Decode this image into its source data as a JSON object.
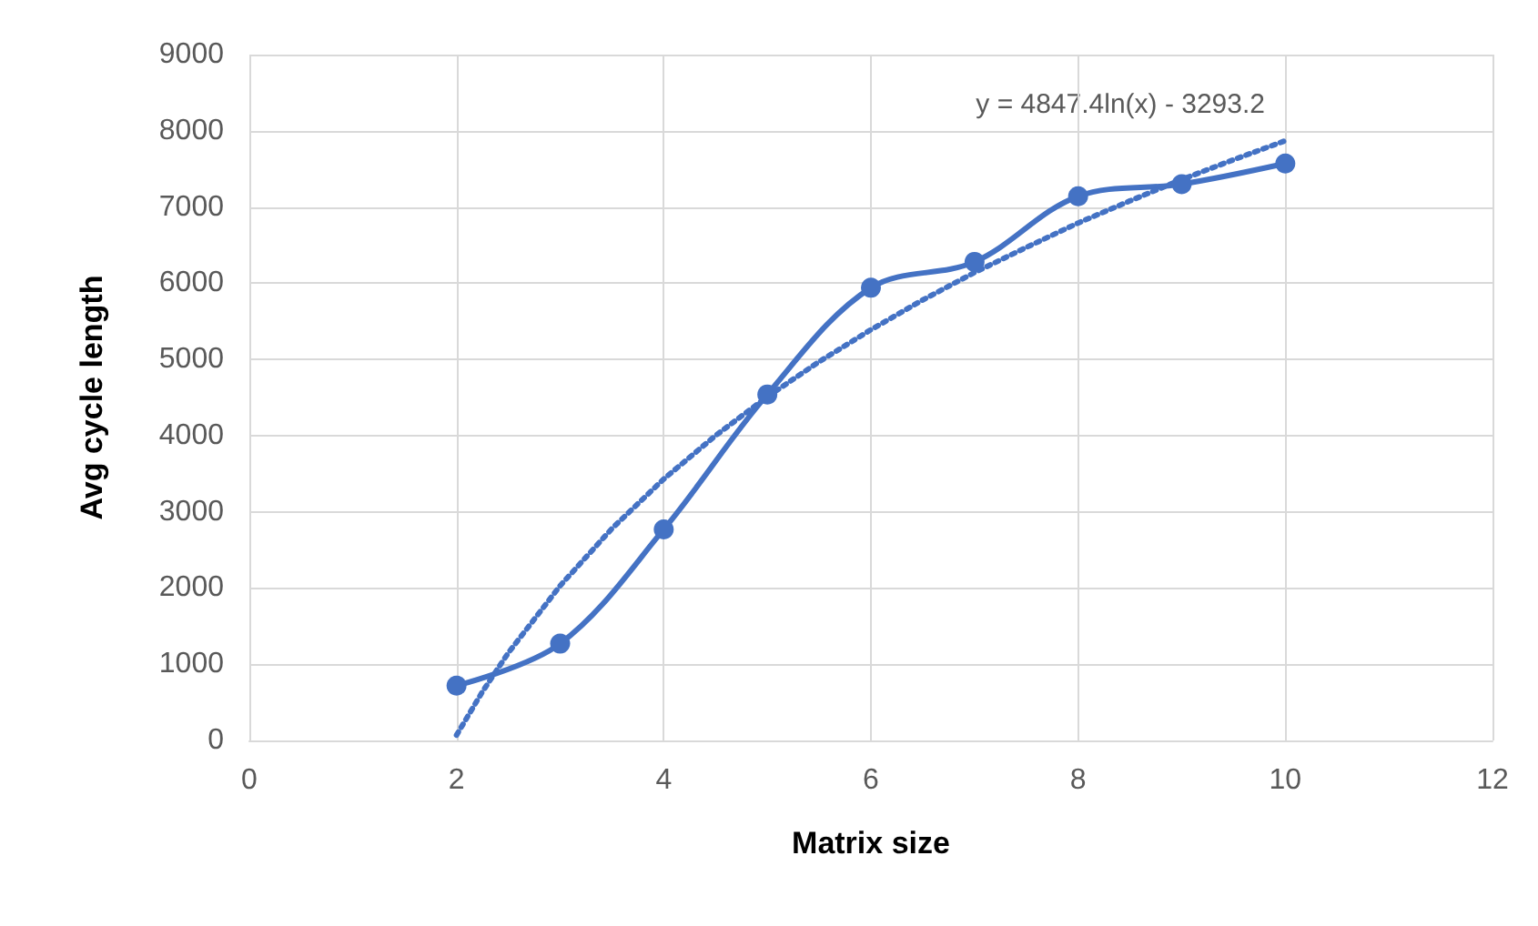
{
  "chart_data": {
    "type": "line",
    "xlabel": "Matrix size",
    "ylabel": "Avg cycle length",
    "xlim": [
      0,
      12
    ],
    "xticks": [
      0,
      2,
      4,
      6,
      8,
      10,
      12
    ],
    "ylim": [
      0,
      9000
    ],
    "yticks": [
      0,
      1000,
      2000,
      3000,
      4000,
      5000,
      6000,
      7000,
      8000,
      9000
    ],
    "grid": true,
    "annotations": [
      "y = 4847.4ln(x) - 3293.2"
    ],
    "series": [
      {
        "color": "#4472c4",
        "marker": "circle",
        "line_style": "solid",
        "x": [
          2,
          3,
          4,
          5,
          6,
          7,
          8,
          9,
          10
        ],
        "values": [
          720,
          1270,
          2770,
          4540,
          5940,
          6280,
          7140,
          7300,
          7570
        ]
      },
      {
        "color": "#4472c4",
        "marker": "none",
        "line_style": "dotted",
        "x": [
          2,
          2.25,
          2.5,
          3,
          3.5,
          4,
          4.5,
          5,
          5.5,
          6,
          6.5,
          7,
          7.5,
          8,
          8.5,
          9,
          9.5,
          10
        ],
        "values": [
          70,
          640,
          1150,
          2030,
          2780,
          3430,
          4000,
          4510,
          4970,
          5390,
          5780,
          6140,
          6470,
          6790,
          7080,
          7360,
          7620,
          7870
        ]
      }
    ]
  }
}
